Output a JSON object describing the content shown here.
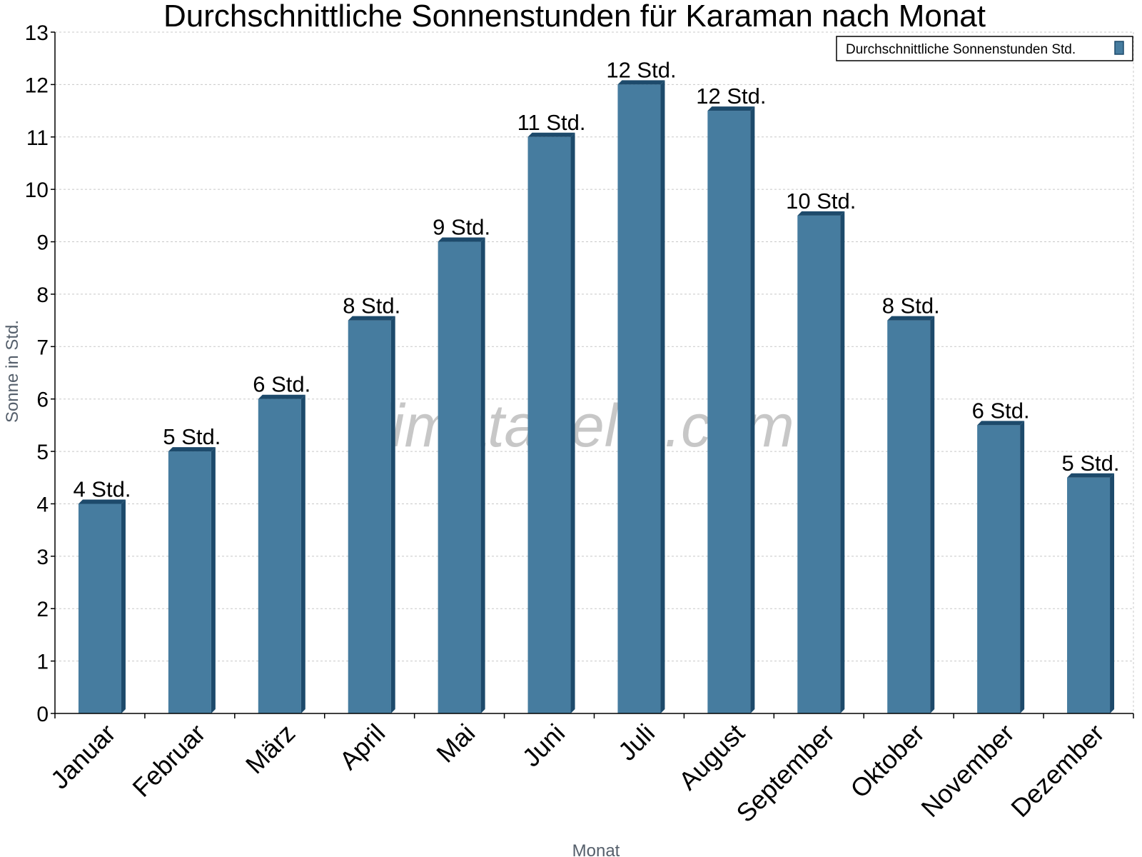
{
  "chart_data": {
    "type": "bar",
    "title": "Durchschnittliche Sonnenstunden für Karaman nach Monat",
    "xlabel": "Monat",
    "ylabel": "Sonne in Std.",
    "ylim": [
      0,
      13
    ],
    "yticks": [
      0,
      1,
      2,
      3,
      4,
      5,
      6,
      7,
      8,
      9,
      10,
      11,
      12,
      13
    ],
    "grid": true,
    "legend_position": "top-right",
    "categories": [
      "Januar",
      "Februar",
      "März",
      "April",
      "Mai",
      "Juni",
      "Juli",
      "August",
      "September",
      "Oktober",
      "November",
      "Dezember"
    ],
    "series": [
      {
        "name": "Durchschnittliche Sonnenstunden Std.",
        "values": [
          4,
          5,
          6,
          7.5,
          9,
          11,
          12,
          11.5,
          9.5,
          7.5,
          5.5,
          4.5
        ],
        "labels": [
          "4 Std.",
          "5 Std.",
          "6 Std.",
          "8 Std.",
          "9 Std.",
          "11 Std.",
          "12 Std.",
          "12 Std.",
          "10 Std.",
          "8 Std.",
          "6 Std.",
          "5 Std."
        ],
        "color": "#467c9f",
        "side_color": "#1d4a6b"
      }
    ],
    "watermark": "klimatabelle.com"
  }
}
